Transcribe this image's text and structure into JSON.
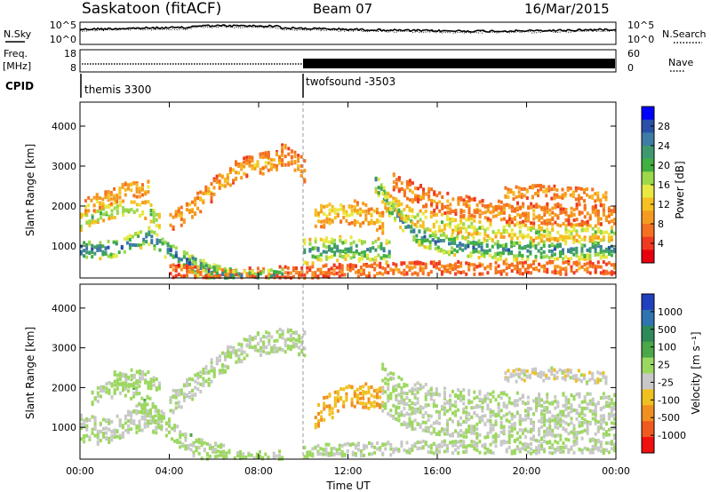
{
  "header": {
    "station": "Saskatoon (fitACF)",
    "beam": "Beam 07",
    "date": "16/Mar/2015"
  },
  "top_panels": {
    "nsky_label": "N.Sky",
    "nsearch_label": "N.Search",
    "noise_ticks_left": [
      "10^5",
      "10^0"
    ],
    "noise_ticks_right": [
      "10^5",
      "10^0"
    ],
    "freq_label_1": "Freq.",
    "freq_label_2": "[MHz]",
    "freq_ticks": [
      "18",
      "8"
    ],
    "nave_label": "Nave",
    "nave_ticks": [
      "60",
      "0"
    ],
    "cpid_label": "CPID",
    "cpid_segments": [
      {
        "name": "themis 3300",
        "start_hour": 0
      },
      {
        "name": "twofsound -3503",
        "start_hour": 10.0
      }
    ]
  },
  "colorbars": {
    "power": {
      "label": "Power [dB]",
      "ticks": [
        "28",
        "24",
        "20",
        "16",
        "12",
        "8",
        "4"
      ],
      "colors": [
        "#0000ff",
        "#2a4fa8",
        "#3e7ba6",
        "#3e9a6e",
        "#40b040",
        "#9bd84a",
        "#e8e840",
        "#f5c020",
        "#f59a20",
        "#f57020",
        "#f03a20",
        "#e80010"
      ]
    },
    "velocity": {
      "label": "Velocity [m s⁻¹]",
      "ticks": [
        "1000",
        "500",
        "100",
        "25",
        "-25",
        "-100",
        "-500",
        "-1000"
      ],
      "colors": [
        "#2040c0",
        "#2f73b0",
        "#2f8a5a",
        "#4aa848",
        "#9cd860",
        "#c8c8c8",
        "#f0c020",
        "#f09020",
        "#f05a20",
        "#f01010"
      ]
    }
  },
  "chart_data": [
    {
      "type": "heatmap",
      "panel": "power",
      "ylabel": "Slant Range [km]",
      "yticks": [
        "4000",
        "3000",
        "2000",
        "1000"
      ],
      "ylim": [
        200,
        4600
      ],
      "xlim_hours": [
        0,
        24
      ],
      "colorbar": "Power [dB]",
      "scatter_bands": [
        {
          "t": [
            0.0,
            1.0,
            2.0,
            3.0,
            3.6,
            4.6,
            5.6,
            6.8
          ],
          "r": [
            900,
            900,
            1000,
            1250,
            1000,
            650,
            350,
            250
          ],
          "w": 220,
          "p": 26
        },
        {
          "t": [
            0.0,
            1.0,
            2.0,
            3.0,
            3.5
          ],
          "r": [
            1600,
            1850,
            1950,
            1900,
            1600
          ],
          "w": 220,
          "p": 18
        },
        {
          "t": [
            0.2,
            1.0,
            2.0,
            3.0
          ],
          "r": [
            2000,
            2150,
            2400,
            2450
          ],
          "w": 200,
          "p": 11
        },
        {
          "t": [
            4.0,
            5.0,
            6.0,
            7.0,
            8.0,
            9.0
          ],
          "r": [
            1600,
            1950,
            2450,
            2900,
            3050,
            3150
          ],
          "w": 260,
          "p": 10
        },
        {
          "t": [
            9.0,
            9.5,
            10.0
          ],
          "r": [
            3300,
            3100,
            2900
          ],
          "w": 300,
          "p": 8
        },
        {
          "t": [
            4.0,
            6.0,
            7.0,
            9.0,
            10.0
          ],
          "r": [
            380,
            300,
            280,
            320,
            320
          ],
          "w": 160,
          "p": 6
        },
        {
          "t": [
            5.0,
            6.0,
            7.0,
            8.0,
            9.0
          ],
          "r": [
            700,
            300,
            250,
            250,
            280
          ],
          "w": 140,
          "p": 24
        },
        {
          "t": [
            10.0,
            11.0,
            12.0,
            13.0,
            13.8
          ],
          "r": [
            850,
            900,
            950,
            900,
            850
          ],
          "w": 300,
          "p": 22
        },
        {
          "t": [
            10.5,
            11.5,
            12.5,
            13.5
          ],
          "r": [
            1700,
            1900,
            1800,
            1600
          ],
          "w": 300,
          "p": 12
        },
        {
          "t": [
            13.2,
            13.8,
            15.0,
            16.0,
            17.0,
            18.0,
            19.0,
            20.0,
            21.0,
            22.0,
            23.0,
            24.0
          ],
          "r": [
            2600,
            2000,
            1300,
            1100,
            1000,
            950,
            900,
            900,
            900,
            900,
            950,
            950
          ],
          "w": 260,
          "p": 24
        },
        {
          "t": [
            13.5,
            14.5,
            16.0,
            18.0,
            20.0,
            22.0,
            24.0
          ],
          "r": [
            2200,
            1800,
            1600,
            1450,
            1350,
            1350,
            1350
          ],
          "w": 220,
          "p": 16
        },
        {
          "t": [
            14.0,
            15.0,
            16.0,
            18.0,
            20.0,
            22.0,
            24.0
          ],
          "r": [
            2600,
            2300,
            2100,
            1900,
            1800,
            1800,
            1750
          ],
          "w": 260,
          "p": 8
        },
        {
          "t": [
            19.0,
            20.0,
            21.0,
            22.0,
            23.5
          ],
          "r": [
            2300,
            2350,
            2350,
            2300,
            2250
          ],
          "w": 160,
          "p": 10
        },
        {
          "t": [
            10.0,
            13.0,
            16.0,
            20.0,
            24.0
          ],
          "r": [
            350,
            400,
            450,
            450,
            450
          ],
          "w": 160,
          "p": 7
        }
      ]
    },
    {
      "type": "heatmap",
      "panel": "velocity",
      "ylabel": "Slant Range [km]",
      "yticks": [
        "4000",
        "3000",
        "2000",
        "1000"
      ],
      "ylim": [
        200,
        4600
      ],
      "xlim_hours": [
        0,
        24
      ],
      "xticks": [
        "00:00",
        "04:00",
        "08:00",
        "12:00",
        "16:00",
        "20:00",
        "00:00"
      ],
      "xlabel": "Time UT",
      "colorbar": "Velocity [m s⁻¹]",
      "scatter_bands": [
        {
          "t": [
            0.0,
            1.0,
            2.0,
            3.0,
            3.6
          ],
          "r": [
            1000,
            900,
            1100,
            1300,
            1100
          ],
          "w": 350,
          "v": 0
        },
        {
          "t": [
            1.5,
            2.5,
            3.5,
            4.5,
            5.5,
            6.5
          ],
          "r": [
            2200,
            1900,
            1200,
            700,
            400,
            300
          ],
          "w": 260,
          "v": 80
        },
        {
          "t": [
            0.5,
            1.5,
            2.5,
            3.5
          ],
          "r": [
            1700,
            2000,
            2300,
            2100
          ],
          "w": 220,
          "v": 60
        },
        {
          "t": [
            4.0,
            5.0,
            6.0,
            7.0,
            8.0,
            9.0,
            10.0
          ],
          "r": [
            1600,
            2000,
            2500,
            2900,
            3100,
            3200,
            3100
          ],
          "w": 300,
          "v": 0
        },
        {
          "t": [
            10.5,
            11.5,
            12.5,
            13.5
          ],
          "r": [
            1300,
            1650,
            1800,
            1700
          ],
          "w": 320,
          "v": -400
        },
        {
          "t": [
            13.5,
            14.5,
            16.0,
            18.0,
            20.0,
            22.0,
            24.0
          ],
          "r": [
            2000,
            1600,
            1400,
            1300,
            1250,
            1250,
            1250
          ],
          "w": 600,
          "v": 0
        },
        {
          "t": [
            19.0,
            20.0,
            21.0,
            22.0,
            23.5
          ],
          "r": [
            2300,
            2300,
            2350,
            2300,
            2200
          ],
          "w": 160,
          "v": -120
        },
        {
          "t": [
            10.0,
            13.0,
            16.0,
            20.0,
            24.0
          ],
          "r": [
            400,
            450,
            500,
            500,
            500
          ],
          "w": 160,
          "v": 0
        },
        {
          "t": [
            6.0,
            7.0,
            8.0,
            9.0
          ],
          "r": [
            350,
            300,
            280,
            300
          ],
          "w": 120,
          "v": 20
        }
      ]
    }
  ]
}
